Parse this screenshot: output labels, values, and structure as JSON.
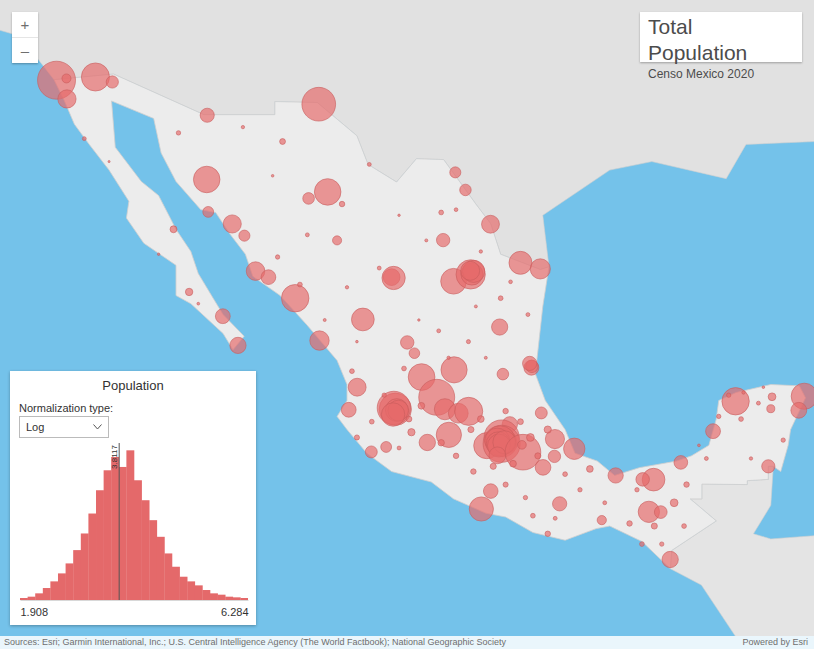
{
  "header": {
    "title": "Total Population",
    "subtitle": "Censo Mexico 2020"
  },
  "zoom_controls": [
    "+",
    "–"
  ],
  "map": {
    "color": "#e66a6a",
    "points": [
      {
        "lon": -117.02,
        "lat": 32.51,
        "population": 1922523
      },
      {
        "lon": -115.45,
        "lat": 32.62,
        "population": 1049792
      },
      {
        "lon": -116.6,
        "lat": 31.87,
        "population": 443807
      },
      {
        "lon": -116.62,
        "lat": 32.57,
        "population": 108440
      },
      {
        "lon": -114.77,
        "lat": 32.45,
        "population": 199021
      },
      {
        "lon": -106.44,
        "lat": 31.69,
        "population": 1512450
      },
      {
        "lon": -110.96,
        "lat": 29.07,
        "population": 936263
      },
      {
        "lon": -106.08,
        "lat": 28.63,
        "population": 937674
      },
      {
        "lon": -109.93,
        "lat": 27.49,
        "population": 436484
      },
      {
        "lon": -110.94,
        "lat": 31.31,
        "population": 264782
      },
      {
        "lon": -109.44,
        "lat": 27.07,
        "population": 164387
      },
      {
        "lon": -110.9,
        "lat": 27.92,
        "population": 156863
      },
      {
        "lon": -107.39,
        "lat": 24.8,
        "population": 1003530
      },
      {
        "lon": -106.41,
        "lat": 23.24,
        "population": 501441
      },
      {
        "lon": -108.99,
        "lat": 25.79,
        "population": 459310
      },
      {
        "lon": -108.47,
        "lat": 25.57,
        "population": 289370
      },
      {
        "lon": -110.31,
        "lat": 24.14,
        "population": 292241
      },
      {
        "lon": -109.7,
        "lat": 23.06,
        "population": 351111
      },
      {
        "lon": -111.67,
        "lat": 25.03,
        "population": 73021
      },
      {
        "lon": -112.3,
        "lat": 27.3,
        "population": 64022
      },
      {
        "lon": -104.66,
        "lat": 24.02,
        "population": 688697
      },
      {
        "lon": -103.5,
        "lat": 25.57,
        "population": 372750
      },
      {
        "lon": -103.42,
        "lat": 25.54,
        "population": 720848
      },
      {
        "lon": -101.0,
        "lat": 25.42,
        "population": 879958
      },
      {
        "lon": -101.42,
        "lat": 26.91,
        "population": 237951
      },
      {
        "lon": -100.52,
        "lat": 28.7,
        "population": 176327
      },
      {
        "lon": -100.93,
        "lat": 29.32,
        "population": 163058
      },
      {
        "lon": -100.31,
        "lat": 25.67,
        "population": 1142994
      },
      {
        "lon": -100.26,
        "lat": 25.68,
        "population": 643143
      },
      {
        "lon": -100.19,
        "lat": 25.78,
        "population": 656464
      },
      {
        "lon": -100.33,
        "lat": 25.8,
        "population": 481213
      },
      {
        "lon": -99.51,
        "lat": 27.48,
        "population": 425058
      },
      {
        "lon": -98.3,
        "lat": 26.09,
        "population": 704767
      },
      {
        "lon": -97.5,
        "lat": 25.87,
        "population": 541979
      },
      {
        "lon": -99.14,
        "lat": 23.74,
        "population": 349688
      },
      {
        "lon": -97.86,
        "lat": 22.23,
        "population": 297562
      },
      {
        "lon": -97.84,
        "lat": 22.28,
        "population": 205933
      },
      {
        "lon": -97.93,
        "lat": 22.39,
        "population": 269790
      },
      {
        "lon": -102.58,
        "lat": 22.77,
        "population": 149607
      },
      {
        "lon": -102.87,
        "lat": 23.17,
        "population": 240532
      },
      {
        "lon": -102.29,
        "lat": 21.88,
        "population": 948990
      },
      {
        "lon": -100.98,
        "lat": 22.15,
        "population": 911908
      },
      {
        "lon": -99.01,
        "lat": 21.99,
        "population": 179371
      },
      {
        "lon": -104.89,
        "lat": 21.5,
        "population": 425924
      },
      {
        "lon": -105.23,
        "lat": 20.65,
        "population": 291839
      },
      {
        "lon": -103.35,
        "lat": 20.67,
        "population": 1385629
      },
      {
        "lon": -103.41,
        "lat": 20.72,
        "population": 1476491
      },
      {
        "lon": -103.29,
        "lat": 20.64,
        "population": 687127
      },
      {
        "lon": -103.23,
        "lat": 20.62,
        "population": 569913
      },
      {
        "lon": -103.44,
        "lat": 20.47,
        "population": 727750
      },
      {
        "lon": -101.68,
        "lat": 21.12,
        "population": 1721215
      },
      {
        "lon": -101.35,
        "lat": 20.67,
        "population": 592953
      },
      {
        "lon": -100.81,
        "lat": 20.52,
        "population": 521169
      },
      {
        "lon": -100.39,
        "lat": 20.59,
        "population": 1049777
      },
      {
        "lon": -101.19,
        "lat": 19.7,
        "population": 849053
      },
      {
        "lon": -102.06,
        "lat": 19.41,
        "population": 356786
      },
      {
        "lon": -103.72,
        "lat": 19.24,
        "population": 157048
      },
      {
        "lon": -104.32,
        "lat": 19.05,
        "population": 191031
      },
      {
        "lon": -98.73,
        "lat": 20.1,
        "population": 314331
      },
      {
        "lon": -99.66,
        "lat": 19.29,
        "population": 910608
      },
      {
        "lon": -99.06,
        "lat": 19.6,
        "population": 1645352
      },
      {
        "lon": -99.01,
        "lat": 19.4,
        "population": 1077208
      },
      {
        "lon": -99.06,
        "lat": 19.36,
        "population": 1835486
      },
      {
        "lon": -99.11,
        "lat": 19.48,
        "population": 1173351
      },
      {
        "lon": -99.24,
        "lat": 19.48,
        "population": 834434
      },
      {
        "lon": -99.2,
        "lat": 19.36,
        "population": 759137
      },
      {
        "lon": -99.17,
        "lat": 19.29,
        "population": 699928
      },
      {
        "lon": -98.95,
        "lat": 19.42,
        "population": 705193
      },
      {
        "lon": -99.23,
        "lat": 18.92,
        "population": 378476
      },
      {
        "lon": -98.2,
        "lat": 19.04,
        "population": 1692181
      },
      {
        "lon": -98.24,
        "lat": 19.32,
        "population": 99896
      },
      {
        "lon": -97.39,
        "lat": 18.46,
        "population": 327312
      },
      {
        "lon": -96.91,
        "lat": 19.54,
        "population": 488531
      },
      {
        "lon": -96.13,
        "lat": 19.17,
        "population": 607209
      },
      {
        "lon": -94.46,
        "lat": 18.15,
        "population": 310698
      },
      {
        "lon": -96.93,
        "lat": 18.88,
        "population": 204721
      },
      {
        "lon": -97.46,
        "lat": 20.53,
        "population": 189457
      },
      {
        "lon": -99.88,
        "lat": 16.86,
        "population": 779566
      },
      {
        "lon": -99.5,
        "lat": 17.55,
        "population": 283354
      },
      {
        "lon": -96.72,
        "lat": 17.06,
        "population": 270955
      },
      {
        "lon": -95.02,
        "lat": 16.43,
        "population": 113570
      },
      {
        "lon": -93.12,
        "lat": 16.75,
        "population": 604147
      },
      {
        "lon": -92.64,
        "lat": 16.74,
        "population": 215874
      },
      {
        "lon": -92.26,
        "lat": 14.9,
        "population": 353706
      },
      {
        "lon": -92.93,
        "lat": 17.99,
        "population": 683607
      },
      {
        "lon": -93.37,
        "lat": 18.0,
        "population": 243229
      },
      {
        "lon": -90.53,
        "lat": 19.84,
        "population": 294077
      },
      {
        "lon": -91.83,
        "lat": 18.65,
        "population": 248845
      },
      {
        "lon": -89.62,
        "lat": 20.97,
        "population": 995129
      },
      {
        "lon": -88.2,
        "lat": 20.69,
        "population": 85460
      },
      {
        "lon": -86.85,
        "lat": 21.16,
        "population": 911503
      },
      {
        "lon": -87.07,
        "lat": 20.63,
        "population": 333800
      },
      {
        "lon": -88.3,
        "lat": 18.5,
        "population": 233648
      },
      {
        "lon": -88.15,
        "lat": 21.14,
        "population": 80672
      },
      {
        "lon": -112.1,
        "lat": 30.7,
        "population": 26000
      },
      {
        "lon": -109.5,
        "lat": 30.9,
        "population": 15000
      },
      {
        "lon": -108.3,
        "lat": 29.2,
        "population": 9000
      },
      {
        "lon": -107.9,
        "lat": 30.4,
        "population": 45000
      },
      {
        "lon": -105.5,
        "lat": 28.2,
        "population": 40000
      },
      {
        "lon": -106.9,
        "lat": 27.1,
        "population": 20000
      },
      {
        "lon": -105.7,
        "lat": 26.9,
        "population": 110000
      },
      {
        "lon": -106.85,
        "lat": 28.4,
        "population": 180000
      },
      {
        "lon": -104.4,
        "lat": 29.6,
        "population": 20000
      },
      {
        "lon": -103.2,
        "lat": 27.8,
        "population": 8000
      },
      {
        "lon": -101.5,
        "lat": 27.9,
        "population": 30000
      },
      {
        "lon": -102.1,
        "lat": 26.9,
        "population": 12000
      },
      {
        "lon": -100.9,
        "lat": 28.0,
        "population": 18000
      },
      {
        "lon": -105.3,
        "lat": 25.2,
        "population": 15000
      },
      {
        "lon": -104.0,
        "lat": 25.9,
        "population": 20000
      },
      {
        "lon": -106.2,
        "lat": 24.0,
        "population": 12000
      },
      {
        "lon": -104.9,
        "lat": 23.2,
        "population": 9000
      },
      {
        "lon": -107.2,
        "lat": 25.3,
        "population": 30000
      },
      {
        "lon": -108.1,
        "lat": 26.3,
        "population": 25000
      },
      {
        "lon": -103.0,
        "lat": 22.2,
        "population": 30000
      },
      {
        "lon": -101.6,
        "lat": 23.6,
        "population": 20000
      },
      {
        "lon": -101.2,
        "lat": 22.6,
        "population": 15000
      },
      {
        "lon": -100.4,
        "lat": 23.2,
        "population": 22000
      },
      {
        "lon": -99.7,
        "lat": 22.6,
        "population": 12000
      },
      {
        "lon": -102.4,
        "lat": 24.0,
        "population": 8000
      },
      {
        "lon": -99.1,
        "lat": 24.8,
        "population": 30000
      },
      {
        "lon": -98.0,
        "lat": 24.2,
        "population": 20000
      },
      {
        "lon": -99.9,
        "lat": 26.5,
        "population": 15000
      },
      {
        "lon": -98.7,
        "lat": 25.4,
        "population": 18000
      },
      {
        "lon": -100.1,
        "lat": 24.5,
        "population": 12000
      },
      {
        "lon": -104.3,
        "lat": 20.2,
        "population": 30000
      },
      {
        "lon": -103.8,
        "lat": 21.2,
        "population": 25000
      },
      {
        "lon": -102.8,
        "lat": 20.3,
        "population": 45000
      },
      {
        "lon": -102.3,
        "lat": 20.8,
        "population": 60000
      },
      {
        "lon": -102.7,
        "lat": 19.8,
        "population": 70000
      },
      {
        "lon": -101.5,
        "lat": 19.4,
        "population": 55000
      },
      {
        "lon": -100.9,
        "lat": 18.9,
        "population": 40000
      },
      {
        "lon": -104.9,
        "lat": 19.6,
        "population": 35000
      },
      {
        "lon": -105.1,
        "lat": 22.1,
        "population": 30000
      },
      {
        "lon": -103.2,
        "lat": 19.2,
        "population": 20000
      },
      {
        "lon": -100.3,
        "lat": 19.9,
        "population": 50000
      },
      {
        "lon": -99.9,
        "lat": 20.3,
        "population": 60000
      },
      {
        "lon": -98.9,
        "lat": 20.6,
        "population": 40000
      },
      {
        "lon": -98.3,
        "lat": 20.2,
        "population": 45000
      },
      {
        "lon": -97.9,
        "lat": 19.6,
        "population": 80000
      },
      {
        "lon": -97.6,
        "lat": 18.9,
        "population": 50000
      },
      {
        "lon": -98.6,
        "lat": 18.6,
        "population": 60000
      },
      {
        "lon": -99.4,
        "lat": 18.5,
        "population": 50000
      },
      {
        "lon": -100.2,
        "lat": 18.3,
        "population": 40000
      },
      {
        "lon": -98.9,
        "lat": 17.8,
        "population": 35000
      },
      {
        "lon": -98.1,
        "lat": 17.3,
        "population": 25000
      },
      {
        "lon": -97.2,
        "lat": 19.9,
        "population": 70000
      },
      {
        "lon": -96.5,
        "lat": 18.2,
        "population": 30000
      },
      {
        "lon": -95.9,
        "lat": 17.6,
        "population": 25000
      },
      {
        "lon": -96.9,
        "lat": 16.5,
        "population": 20000
      },
      {
        "lon": -97.8,
        "lat": 16.6,
        "population": 30000
      },
      {
        "lon": -97.2,
        "lat": 15.9,
        "population": 40000
      },
      {
        "lon": -95.5,
        "lat": 18.4,
        "population": 60000
      },
      {
        "lon": -94.9,
        "lat": 17.1,
        "population": 20000
      },
      {
        "lon": -93.9,
        "lat": 16.3,
        "population": 40000
      },
      {
        "lon": -92.9,
        "lat": 16.2,
        "population": 50000
      },
      {
        "lon": -92.1,
        "lat": 17.1,
        "population": 80000
      },
      {
        "lon": -91.7,
        "lat": 16.2,
        "population": 30000
      },
      {
        "lon": -93.6,
        "lat": 17.6,
        "population": 25000
      },
      {
        "lon": -91.6,
        "lat": 17.8,
        "population": 40000
      },
      {
        "lon": -90.8,
        "lat": 18.8,
        "population": 20000
      },
      {
        "lon": -90.3,
        "lat": 20.4,
        "population": 25000
      },
      {
        "lon": -89.4,
        "lat": 20.3,
        "population": 30000
      },
      {
        "lon": -88.7,
        "lat": 20.9,
        "population": 20000
      },
      {
        "lon": -87.7,
        "lat": 19.5,
        "population": 25000
      },
      {
        "lon": -89.0,
        "lat": 18.8,
        "population": 15000
      },
      {
        "lon": -91.1,
        "lat": 19.3,
        "population": 10000
      },
      {
        "lon": -93.4,
        "lat": 15.5,
        "population": 30000
      },
      {
        "lon": -92.6,
        "lat": 15.5,
        "population": 25000
      },
      {
        "lon": -115.9,
        "lat": 30.5,
        "population": 20000
      },
      {
        "lon": -114.9,
        "lat": 29.7,
        "population": 6000
      },
      {
        "lon": -112.9,
        "lat": 26.4,
        "population": 8000
      },
      {
        "lon": -111.3,
        "lat": 24.6,
        "population": 10000
      },
      {
        "lon": -89.9,
        "lat": 21.2,
        "population": 25000
      },
      {
        "lon": -89.3,
        "lat": 21.3,
        "population": 15000
      },
      {
        "lon": -88.5,
        "lat": 21.5,
        "population": 9000
      }
    ]
  },
  "legend_panel": {
    "normalization_label": "Normalization type:",
    "normalization_value": "Log"
  },
  "chart_data": {
    "type": "histogram",
    "title": "Population",
    "color": "#e4696a",
    "bins": [
      1.908,
      2.054,
      2.2,
      2.346,
      2.491,
      2.637,
      2.783,
      2.929,
      3.075,
      3.221,
      3.367,
      3.513,
      3.658,
      3.804,
      3.95,
      4.096,
      4.242,
      4.388,
      4.534,
      4.68,
      4.825,
      4.971,
      5.117,
      5.263,
      5.409,
      5.555,
      5.701,
      5.847,
      5.992,
      6.138,
      6.284
    ],
    "counts": [
      3,
      5,
      10,
      18,
      28,
      40,
      55,
      75,
      100,
      130,
      165,
      195,
      215,
      200,
      225,
      180,
      150,
      120,
      95,
      70,
      50,
      35,
      28,
      22,
      15,
      10,
      8,
      5,
      4,
      3
    ],
    "xlim": [
      1.908,
      6.284
    ],
    "xticks": [
      1.908,
      6.284
    ],
    "ylim": [
      0,
      230
    ],
    "tick_labels": "x",
    "annotations": [
      {
        "value": 3.8117,
        "label": "3.8117"
      }
    ]
  },
  "footer": {
    "sources": "Sources: Esri; Garmin International, Inc.; U.S. Central Intelligence Agency (The World Factbook); National Geographic Society",
    "powered_by": "Powered by Esri"
  }
}
